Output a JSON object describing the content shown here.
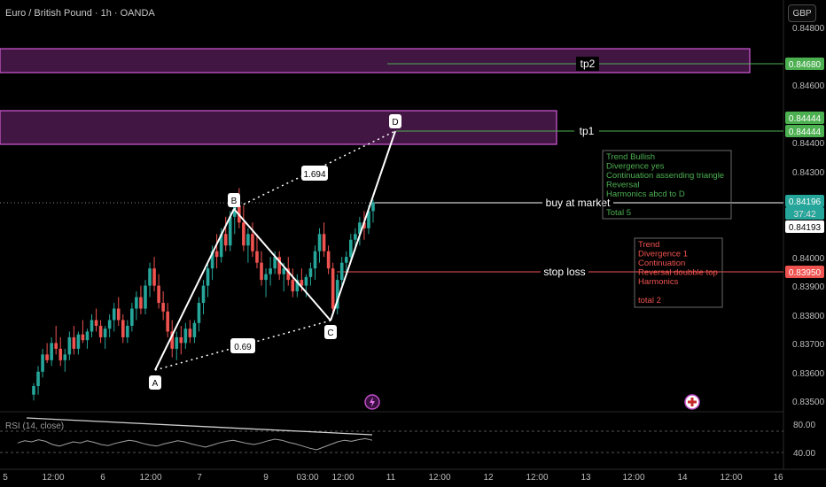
{
  "header": {
    "title": "Euro / British Pound · 1h · OANDA",
    "currency": "GBP"
  },
  "colors": {
    "up": "#26a69a",
    "down": "#ef5350",
    "background": "#000000",
    "zone_fill": "#5a1f5c",
    "zone_border": "#d05bd6",
    "tp_line": "#4caf50",
    "stop_line": "#ef5350",
    "market_line": "#ffffff",
    "bull_text": "#4caf50",
    "bear_text": "#ef5350",
    "rsi_line": "#b0b0b0"
  },
  "chart_data": {
    "type": "candlestick",
    "y_axis_ticks": [
      "0.84800",
      "0.84600",
      "0.84400",
      "0.84300",
      "0.84000",
      "0.83900",
      "0.83800",
      "0.83700",
      "0.83600",
      "0.83500"
    ],
    "x_axis_ticks": [
      "5",
      "12:00",
      "6",
      "12:00",
      "7",
      "9",
      "03:00",
      "12:00",
      "11",
      "12:00",
      "12",
      "12:00",
      "13",
      "12:00",
      "14",
      "12:00",
      "16"
    ],
    "price_labels": [
      {
        "text": "0.84680",
        "kind": "tp"
      },
      {
        "text": "0.84444",
        "kind": "tp"
      },
      {
        "text": "0.84444",
        "kind": "tp"
      },
      {
        "text": "0.84196",
        "kind": "last"
      },
      {
        "text": "37:42",
        "kind": "countdown"
      },
      {
        "text": "0.84193",
        "kind": "plain"
      },
      {
        "text": "0.83950",
        "kind": "stop"
      }
    ],
    "zones": [
      {
        "name": "tp2 zone",
        "from": 0.8465,
        "to": 0.8471
      },
      {
        "name": "tp1 zone",
        "from": 0.8438,
        "to": 0.8446
      }
    ],
    "levels": [
      {
        "label": "tp2",
        "price": 0.8468
      },
      {
        "label": "tp1",
        "price": 0.84444
      },
      {
        "label": "buy at market",
        "price": 0.84196
      },
      {
        "label": "stop loss",
        "price": 0.8395
      }
    ],
    "harmonic_points": [
      {
        "label": "A",
        "price": 0.8364
      },
      {
        "label": "B",
        "price": 0.8422
      },
      {
        "label": "C",
        "price": 0.838
      },
      {
        "label": "D",
        "price": 0.84444
      }
    ],
    "ratios": [
      "1.694",
      "0.69"
    ],
    "candles": [
      [
        0.8352,
        0.8356,
        0.835,
        0.8355
      ],
      [
        0.8355,
        0.8362,
        0.8352,
        0.836
      ],
      [
        0.836,
        0.8368,
        0.8358,
        0.8366
      ],
      [
        0.8366,
        0.837,
        0.8363,
        0.8364
      ],
      [
        0.8364,
        0.8372,
        0.8362,
        0.837
      ],
      [
        0.837,
        0.8376,
        0.8366,
        0.8368
      ],
      [
        0.8368,
        0.8372,
        0.8362,
        0.8364
      ],
      [
        0.8364,
        0.8368,
        0.836,
        0.8366
      ],
      [
        0.8366,
        0.8374,
        0.8364,
        0.8372
      ],
      [
        0.8372,
        0.8376,
        0.8366,
        0.8368
      ],
      [
        0.8368,
        0.8374,
        0.8366,
        0.8373
      ],
      [
        0.8373,
        0.8378,
        0.837,
        0.8371
      ],
      [
        0.8371,
        0.8375,
        0.8368,
        0.8374
      ],
      [
        0.8374,
        0.838,
        0.8372,
        0.8378
      ],
      [
        0.8378,
        0.8382,
        0.8374,
        0.8376
      ],
      [
        0.8376,
        0.8378,
        0.837,
        0.8372
      ],
      [
        0.8372,
        0.8376,
        0.8368,
        0.8375
      ],
      [
        0.8375,
        0.838,
        0.8372,
        0.8378
      ],
      [
        0.8378,
        0.8384,
        0.8374,
        0.8382
      ],
      [
        0.8382,
        0.8386,
        0.8376,
        0.8378
      ],
      [
        0.8378,
        0.838,
        0.837,
        0.8372
      ],
      [
        0.8372,
        0.8378,
        0.837,
        0.8376
      ],
      [
        0.8376,
        0.8384,
        0.8374,
        0.8382
      ],
      [
        0.8382,
        0.8388,
        0.8378,
        0.8386
      ],
      [
        0.8386,
        0.839,
        0.838,
        0.8382
      ],
      [
        0.8382,
        0.8392,
        0.838,
        0.839
      ],
      [
        0.839,
        0.8398,
        0.8386,
        0.8396
      ],
      [
        0.8396,
        0.84,
        0.8388,
        0.839
      ],
      [
        0.839,
        0.8394,
        0.8382,
        0.8384
      ],
      [
        0.8384,
        0.8388,
        0.8378,
        0.8381
      ],
      [
        0.8381,
        0.8384,
        0.8372,
        0.8374
      ],
      [
        0.8374,
        0.8378,
        0.8365,
        0.8368
      ],
      [
        0.8368,
        0.8374,
        0.8364,
        0.8372
      ],
      [
        0.8372,
        0.8376,
        0.8366,
        0.837
      ],
      [
        0.837,
        0.8377,
        0.8368,
        0.8375
      ],
      [
        0.8375,
        0.8378,
        0.837,
        0.8372
      ],
      [
        0.8372,
        0.8378,
        0.837,
        0.8377
      ],
      [
        0.8377,
        0.8386,
        0.8374,
        0.8384
      ],
      [
        0.8384,
        0.8392,
        0.838,
        0.839
      ],
      [
        0.839,
        0.8398,
        0.8386,
        0.8396
      ],
      [
        0.8396,
        0.8404,
        0.8392,
        0.8402
      ],
      [
        0.8402,
        0.8408,
        0.8396,
        0.84
      ],
      [
        0.84,
        0.841,
        0.8398,
        0.8408
      ],
      [
        0.8408,
        0.8414,
        0.8402,
        0.8404
      ],
      [
        0.8404,
        0.8416,
        0.8402,
        0.8414
      ],
      [
        0.8414,
        0.8422,
        0.8408,
        0.8418
      ],
      [
        0.8418,
        0.8424,
        0.841,
        0.8412
      ],
      [
        0.8412,
        0.8418,
        0.8402,
        0.8404
      ],
      [
        0.8404,
        0.841,
        0.8398,
        0.8408
      ],
      [
        0.8408,
        0.8412,
        0.84,
        0.8402
      ],
      [
        0.8402,
        0.8408,
        0.8396,
        0.8398
      ],
      [
        0.8398,
        0.8402,
        0.839,
        0.8392
      ],
      [
        0.8392,
        0.8396,
        0.8386,
        0.8394
      ],
      [
        0.8394,
        0.84,
        0.839,
        0.8396
      ],
      [
        0.8396,
        0.8402,
        0.8394,
        0.84
      ],
      [
        0.84,
        0.8402,
        0.8392,
        0.8394
      ],
      [
        0.8394,
        0.8398,
        0.8388,
        0.8396
      ],
      [
        0.8396,
        0.84,
        0.839,
        0.8392
      ],
      [
        0.8392,
        0.8396,
        0.8386,
        0.8388
      ],
      [
        0.8388,
        0.8394,
        0.8386,
        0.8392
      ],
      [
        0.8392,
        0.8396,
        0.8388,
        0.839
      ],
      [
        0.839,
        0.8394,
        0.8386,
        0.8393
      ],
      [
        0.8393,
        0.8398,
        0.839,
        0.8396
      ],
      [
        0.8396,
        0.8404,
        0.8392,
        0.8402
      ],
      [
        0.8402,
        0.841,
        0.8398,
        0.8408
      ],
      [
        0.8408,
        0.8412,
        0.84,
        0.8402
      ],
      [
        0.8402,
        0.8404,
        0.8394,
        0.8396
      ],
      [
        0.8396,
        0.8398,
        0.838,
        0.8382
      ],
      [
        0.8382,
        0.8394,
        0.838,
        0.8392
      ],
      [
        0.8392,
        0.84,
        0.839,
        0.8398
      ],
      [
        0.8398,
        0.8402,
        0.8394,
        0.84
      ],
      [
        0.84,
        0.8408,
        0.8398,
        0.8406
      ],
      [
        0.8406,
        0.841,
        0.8402,
        0.8408
      ],
      [
        0.8408,
        0.8414,
        0.8404,
        0.8412
      ],
      [
        0.8412,
        0.8416,
        0.8406,
        0.841
      ],
      [
        0.841,
        0.8418,
        0.8408,
        0.8416
      ],
      [
        0.8416,
        0.842,
        0.8412,
        0.8419
      ]
    ],
    "rsi": {
      "label": "RSI (14, close)",
      "levels": [
        "80.00",
        "40.00"
      ],
      "values": [
        58,
        62,
        60,
        64,
        61,
        55,
        52,
        56,
        60,
        58,
        62,
        59,
        55,
        53,
        57,
        60,
        63,
        61,
        57,
        54,
        52,
        56,
        59,
        62,
        60,
        56,
        53,
        50,
        54,
        58,
        61,
        63,
        60,
        57,
        55,
        58,
        62,
        65,
        63,
        59,
        56,
        52,
        48,
        45,
        50,
        55,
        60,
        63,
        61,
        64,
        66,
        63
      ]
    }
  },
  "analysis": {
    "bullish": {
      "trend": "Trend   Bullish",
      "divergence": "Divergence   yes",
      "continuation": "Continuation   assending triangle",
      "reversal": "Reversal",
      "harmonics": "Harmonics   abcd to D",
      "total": "Total 5"
    },
    "bearish": {
      "trend": "Trend",
      "divergence": "Divergence     1",
      "continuation": "Continuation",
      "reversal": "Reversal   doubble top",
      "harmonics": "Harmonics",
      "total": "total 2"
    }
  }
}
